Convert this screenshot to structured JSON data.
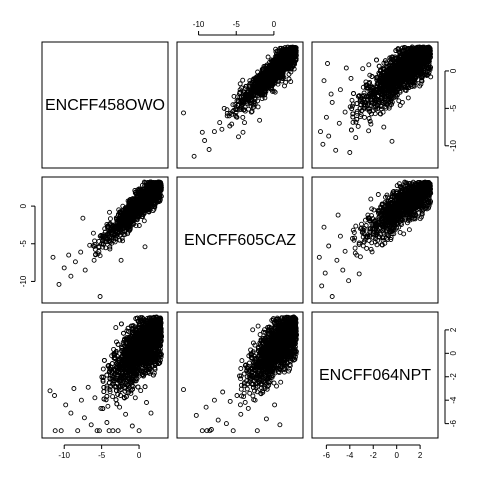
{
  "chart_data": {
    "type": "scatter",
    "title": "",
    "variables": [
      "ENCFF458OWO",
      "ENCFF605CAZ",
      "ENCFF064NPT"
    ],
    "axes": {
      "ENCFF458OWO": {
        "range": [
          -12.3,
          3.2
        ],
        "ticks": [
          -10,
          -5,
          0
        ]
      },
      "ENCFF605CAZ": {
        "range": [
          -12.2,
          3.2
        ],
        "ticks": [
          -10,
          -5,
          0
        ]
      },
      "ENCFF064NPT": {
        "range": [
          -6.8,
          3.1
        ],
        "ticks": [
          -6,
          -4,
          -2,
          0,
          2
        ]
      }
    },
    "pairs": [
      {
        "x": "ENCFF605CAZ",
        "y": "ENCFF458OWO",
        "row": 1,
        "col": 2,
        "trend": {
          "slope": 0.98,
          "intercept": 0.0,
          "spread": 0.9
        },
        "points": [
          [
            -9.5,
            -8.2
          ],
          [
            -8.6,
            -10.5
          ],
          [
            -9.2,
            -9.3
          ],
          [
            -7.9,
            -8.1
          ],
          [
            -7.2,
            -6.9
          ],
          [
            -6.9,
            -7.8
          ],
          [
            -6.2,
            -6.0
          ],
          [
            -5.6,
            -7.1
          ],
          [
            -4.9,
            -6.2
          ],
          [
            -4.7,
            -8.8
          ],
          [
            -4.4,
            -4.1
          ],
          [
            -3.9,
            -6.9
          ],
          [
            -3.2,
            -3.2
          ],
          [
            -2.6,
            -1.8
          ],
          [
            -2.1,
            -4.8
          ],
          [
            -1.6,
            -1.1
          ],
          [
            -1.2,
            -3.6
          ],
          [
            -0.8,
            0.4
          ],
          [
            -0.3,
            -2.2
          ],
          [
            0.2,
            0.8
          ],
          [
            0.6,
            -1.4
          ],
          [
            1.1,
            1.6
          ],
          [
            1.5,
            0.2
          ],
          [
            2.0,
            2.2
          ],
          [
            2.4,
            1.1
          ],
          [
            2.8,
            2.6
          ],
          [
            -12.0,
            -5.6
          ],
          [
            -10.6,
            -11.4
          ],
          [
            -6.6,
            -5.0
          ],
          [
            -2.9,
            -5.4
          ],
          [
            -5.3,
            -3.4
          ],
          [
            -1.9,
            -6.6
          ],
          [
            -4.1,
            -8.2
          ]
        ],
        "n_cloud": 1400,
        "cloud": {
          "x": [
            -6.5,
            3.0
          ],
          "center": 0.6
        }
      },
      {
        "x": "ENCFF064NPT",
        "y": "ENCFF458OWO",
        "row": 1,
        "col": 3,
        "trend": {
          "slope": 1.25,
          "intercept": -0.6,
          "spread": 1.4
        },
        "points": [
          [
            -6.5,
            -8.1
          ],
          [
            -6.3,
            -9.8
          ],
          [
            -6.0,
            -6.2
          ],
          [
            -5.8,
            -8.7
          ],
          [
            -5.5,
            -4.2
          ],
          [
            -5.2,
            -10.6
          ],
          [
            -4.9,
            -7.0
          ],
          [
            -4.4,
            -5.5
          ],
          [
            -4.0,
            -10.9
          ],
          [
            -3.7,
            -4.4
          ],
          [
            -3.5,
            -8.9
          ],
          [
            -3.1,
            -6.1
          ],
          [
            -2.8,
            -3.3
          ],
          [
            -2.4,
            -8.0
          ],
          [
            -6.2,
            -1.3
          ],
          [
            -5.6,
            -3.1
          ],
          [
            -4.8,
            -2.5
          ],
          [
            -3.9,
            -1.0
          ],
          [
            -2.9,
            0.3
          ],
          [
            -2.2,
            -7.1
          ],
          [
            -1.6,
            -5.0
          ],
          [
            -1.1,
            -7.5
          ],
          [
            -0.4,
            -9.4
          ],
          [
            0.3,
            -4.6
          ],
          [
            -5.9,
            1.0
          ],
          [
            -4.3,
            0.4
          ],
          [
            2.6,
            0.9
          ],
          [
            2.9,
            -0.8
          ]
        ],
        "n_cloud": 2200,
        "cloud": {
          "x": [
            -4.0,
            2.9
          ],
          "center": 0.9
        }
      },
      {
        "x": "ENCFF458OWO",
        "y": "ENCFF605CAZ",
        "row": 2,
        "col": 1,
        "trend": {
          "slope": 0.95,
          "intercept": 0.1,
          "spread": 0.9
        },
        "points": [
          [
            -11.5,
            -6.8
          ],
          [
            -10.7,
            -10.4
          ],
          [
            -10.0,
            -8.2
          ],
          [
            -9.1,
            -9.3
          ],
          [
            -8.5,
            -7.4
          ],
          [
            -7.8,
            -6.1
          ],
          [
            -7.2,
            -8.5
          ],
          [
            -6.6,
            -5.2
          ],
          [
            -5.8,
            -6.4
          ],
          [
            -5.2,
            -12.0
          ],
          [
            -4.6,
            -4.1
          ],
          [
            -3.9,
            -5.7
          ],
          [
            -3.4,
            -3.0
          ],
          [
            -2.8,
            -2.6
          ],
          [
            -2.2,
            -4.6
          ],
          [
            -1.7,
            -1.0
          ],
          [
            -1.2,
            -3.1
          ],
          [
            -0.6,
            0.2
          ],
          [
            -0.1,
            -1.5
          ],
          [
            0.5,
            1.0
          ],
          [
            1.0,
            -0.3
          ],
          [
            1.6,
            1.8
          ],
          [
            2.1,
            0.8
          ],
          [
            2.6,
            2.4
          ],
          [
            -7.5,
            -1.6
          ],
          [
            -6.1,
            -3.6
          ],
          [
            0.8,
            -5.4
          ],
          [
            -2.4,
            -7.2
          ],
          [
            -9.4,
            -6.5
          ]
        ],
        "n_cloud": 1400,
        "cloud": {
          "x": [
            -6.2,
            3.0
          ],
          "center": 0.6
        }
      },
      {
        "x": "ENCFF064NPT",
        "y": "ENCFF605CAZ",
        "row": 2,
        "col": 3,
        "trend": {
          "slope": 1.2,
          "intercept": -0.5,
          "spread": 1.3
        },
        "points": [
          [
            -6.6,
            -6.8
          ],
          [
            -6.4,
            -10.6
          ],
          [
            -6.1,
            -8.9
          ],
          [
            -5.8,
            -5.3
          ],
          [
            -5.5,
            -12.0
          ],
          [
            -5.1,
            -7.2
          ],
          [
            -4.8,
            -4.0
          ],
          [
            -4.4,
            -6.0
          ],
          [
            -4.1,
            -9.9
          ],
          [
            -3.7,
            -3.2
          ],
          [
            -3.4,
            -6.5
          ],
          [
            -3.0,
            -2.4
          ],
          [
            -2.7,
            -4.5
          ],
          [
            -2.3,
            -1.7
          ],
          [
            -2.0,
            -3.6
          ],
          [
            -1.6,
            -0.6
          ],
          [
            -1.2,
            -2.8
          ],
          [
            -0.8,
            0.3
          ],
          [
            -0.4,
            -1.4
          ],
          [
            0.1,
            0.9
          ],
          [
            0.5,
            -0.2
          ],
          [
            1.0,
            1.4
          ],
          [
            1.5,
            0.6
          ],
          [
            2.0,
            2.0
          ],
          [
            2.5,
            2.6
          ],
          [
            2.9,
            1.7
          ],
          [
            -6.2,
            -2.8
          ],
          [
            -4.6,
            -8.5
          ],
          [
            -3.2,
            -9.0
          ],
          [
            -5.0,
            -1.2
          ]
        ],
        "n_cloud": 1300,
        "cloud": {
          "x": [
            -3.8,
            2.9
          ],
          "center": 1.0
        }
      },
      {
        "x": "ENCFF458OWO",
        "y": "ENCFF064NPT",
        "row": 3,
        "col": 1,
        "trend": {
          "slope": 0.6,
          "intercept": 0.3,
          "spread": 1.2
        },
        "points": [
          [
            -11.9,
            -3.2
          ],
          [
            -11.3,
            -3.6
          ],
          [
            -9.8,
            -4.4
          ],
          [
            -9.1,
            -5.1
          ],
          [
            -8.7,
            -3.0
          ],
          [
            -8.2,
            -6.6
          ],
          [
            -7.7,
            -4.0
          ],
          [
            -7.3,
            -5.5
          ],
          [
            -6.8,
            -2.9
          ],
          [
            -6.4,
            -6.1
          ],
          [
            -5.9,
            -3.8
          ],
          [
            -5.6,
            -6.6
          ],
          [
            -5.1,
            -4.7
          ],
          [
            -4.8,
            -2.4
          ],
          [
            -4.3,
            -5.9
          ],
          [
            -3.9,
            -3.1
          ],
          [
            -3.5,
            -6.6
          ],
          [
            -3.0,
            -1.6
          ],
          [
            -2.6,
            -4.6
          ],
          [
            -2.2,
            -0.7
          ],
          [
            -1.8,
            -5.2
          ],
          [
            -1.4,
            -2.2
          ],
          [
            -0.9,
            -6.2
          ],
          [
            -0.5,
            -3.8
          ],
          [
            0.0,
            -6.6
          ],
          [
            0.4,
            -1.8
          ],
          [
            1.0,
            -4.2
          ],
          [
            1.6,
            -5.1
          ],
          [
            2.4,
            2.6
          ],
          [
            3.0,
            1.4
          ],
          [
            -11.2,
            -6.6
          ],
          [
            -10.4,
            -6.6
          ],
          [
            -5.3,
            -6.6
          ],
          [
            -4.0,
            -6.6
          ],
          [
            -2.8,
            -6.6
          ]
        ],
        "n_cloud": 2400,
        "cloud": {
          "x": [
            -5.0,
            3.0
          ],
          "center": 0.7
        }
      },
      {
        "x": "ENCFF605CAZ",
        "y": "ENCFF064NPT",
        "row": 3,
        "col": 2,
        "trend": {
          "slope": 0.62,
          "intercept": 0.3,
          "spread": 1.1
        },
        "points": [
          [
            -12.0,
            -3.1
          ],
          [
            -10.3,
            -5.3
          ],
          [
            -9.5,
            -6.6
          ],
          [
            -9.0,
            -4.6
          ],
          [
            -8.3,
            -6.5
          ],
          [
            -7.9,
            -4.0
          ],
          [
            -7.4,
            -5.7
          ],
          [
            -6.8,
            -3.3
          ],
          [
            -6.3,
            -6.0
          ],
          [
            -5.8,
            -4.1
          ],
          [
            -5.4,
            -6.6
          ],
          [
            -4.9,
            -3.6
          ],
          [
            -4.4,
            -5.2
          ],
          [
            -3.9,
            -2.5
          ],
          [
            -3.4,
            -4.7
          ],
          [
            -2.9,
            -1.9
          ],
          [
            -2.5,
            -4.0
          ],
          [
            -2.0,
            -0.9
          ],
          [
            -1.5,
            -3.2
          ],
          [
            -1.0,
            -5.6
          ],
          [
            -0.5,
            -2.4
          ],
          [
            0.1,
            -4.4
          ],
          [
            0.8,
            -6.1
          ],
          [
            1.4,
            -1.6
          ],
          [
            2.0,
            2.2
          ],
          [
            2.6,
            2.9
          ],
          [
            3.0,
            1.6
          ],
          [
            -8.9,
            -6.6
          ],
          [
            -8.5,
            -6.6
          ],
          [
            -2.2,
            -6.6
          ]
        ],
        "n_cloud": 1600,
        "cloud": {
          "x": [
            -4.6,
            3.0
          ],
          "center": 0.8
        }
      }
    ],
    "outer_axes": {
      "top": [
        {
          "col": 2,
          "var": "ENCFF605CAZ"
        }
      ],
      "right": [
        {
          "row": 1,
          "var": "ENCFF458OWO"
        },
        {
          "row": 3,
          "var": "ENCFF064NPT"
        }
      ],
      "left": [
        {
          "row": 2,
          "var": "ENCFF605CAZ"
        }
      ],
      "bottom": [
        {
          "col": 1,
          "var": "ENCFF458OWO"
        },
        {
          "col": 3,
          "var": "ENCFF064NPT"
        }
      ]
    },
    "grid": false,
    "legend": "none"
  }
}
